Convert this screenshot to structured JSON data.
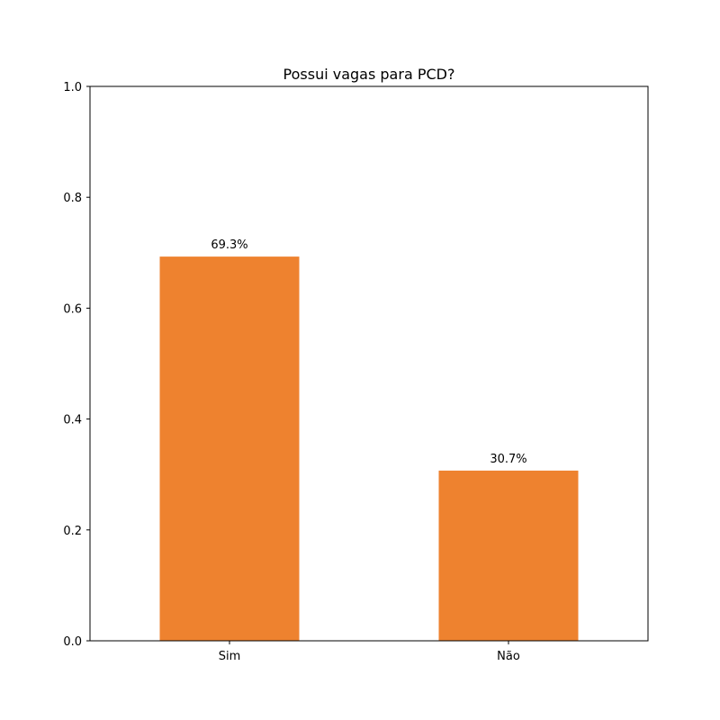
{
  "chart_data": {
    "type": "bar",
    "title": "Possui vagas para PCD?",
    "xlabel": "",
    "ylabel": "",
    "categories": [
      "Sim",
      "Não"
    ],
    "values": [
      0.693,
      0.307
    ],
    "data_labels": [
      "69.3%",
      "30.7%"
    ],
    "ylim": [
      0,
      1.0
    ],
    "yticks": [
      0.0,
      0.2,
      0.4,
      0.6,
      0.8,
      1.0
    ],
    "ytick_labels": [
      "0.0",
      "0.2",
      "0.4",
      "0.6",
      "0.8",
      "1.0"
    ],
    "grid": false,
    "legend": "none",
    "bar_color": "#ee822f"
  }
}
